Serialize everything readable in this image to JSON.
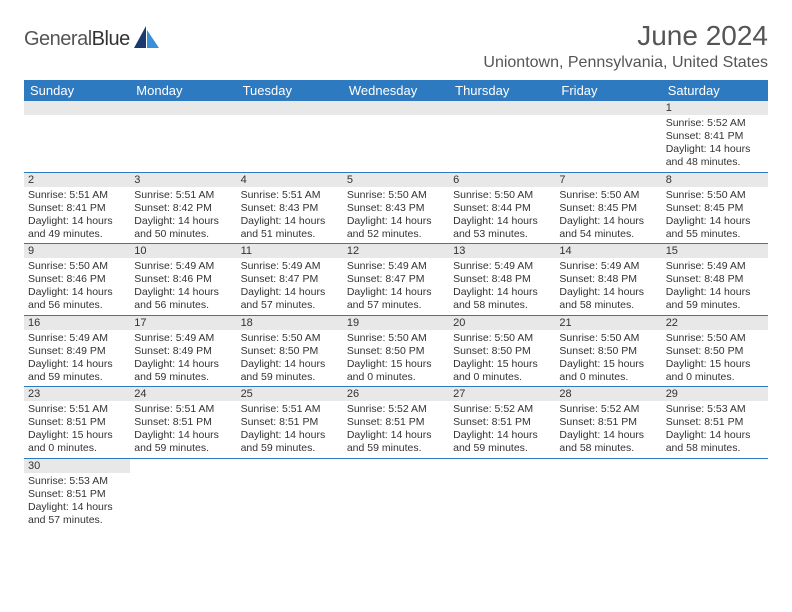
{
  "logo": {
    "text1": "General",
    "text2": "Blue"
  },
  "title": "June 2024",
  "location": "Uniontown, Pennsylvania, United States",
  "colors": {
    "header_bg": "#2d7ac0",
    "header_text": "#ffffff",
    "daynum_bg": "#e8e8e8",
    "text": "#333333",
    "title_text": "#555555",
    "border": "#2d7ac0"
  },
  "weekdays": [
    "Sunday",
    "Monday",
    "Tuesday",
    "Wednesday",
    "Thursday",
    "Friday",
    "Saturday"
  ],
  "weeks": [
    [
      null,
      null,
      null,
      null,
      null,
      null,
      {
        "n": "1",
        "sr": "5:52 AM",
        "ss": "8:41 PM",
        "dl": "14 hours and 48 minutes."
      }
    ],
    [
      {
        "n": "2",
        "sr": "5:51 AM",
        "ss": "8:41 PM",
        "dl": "14 hours and 49 minutes."
      },
      {
        "n": "3",
        "sr": "5:51 AM",
        "ss": "8:42 PM",
        "dl": "14 hours and 50 minutes."
      },
      {
        "n": "4",
        "sr": "5:51 AM",
        "ss": "8:43 PM",
        "dl": "14 hours and 51 minutes."
      },
      {
        "n": "5",
        "sr": "5:50 AM",
        "ss": "8:43 PM",
        "dl": "14 hours and 52 minutes."
      },
      {
        "n": "6",
        "sr": "5:50 AM",
        "ss": "8:44 PM",
        "dl": "14 hours and 53 minutes."
      },
      {
        "n": "7",
        "sr": "5:50 AM",
        "ss": "8:45 PM",
        "dl": "14 hours and 54 minutes."
      },
      {
        "n": "8",
        "sr": "5:50 AM",
        "ss": "8:45 PM",
        "dl": "14 hours and 55 minutes."
      }
    ],
    [
      {
        "n": "9",
        "sr": "5:50 AM",
        "ss": "8:46 PM",
        "dl": "14 hours and 56 minutes."
      },
      {
        "n": "10",
        "sr": "5:49 AM",
        "ss": "8:46 PM",
        "dl": "14 hours and 56 minutes."
      },
      {
        "n": "11",
        "sr": "5:49 AM",
        "ss": "8:47 PM",
        "dl": "14 hours and 57 minutes."
      },
      {
        "n": "12",
        "sr": "5:49 AM",
        "ss": "8:47 PM",
        "dl": "14 hours and 57 minutes."
      },
      {
        "n": "13",
        "sr": "5:49 AM",
        "ss": "8:48 PM",
        "dl": "14 hours and 58 minutes."
      },
      {
        "n": "14",
        "sr": "5:49 AM",
        "ss": "8:48 PM",
        "dl": "14 hours and 58 minutes."
      },
      {
        "n": "15",
        "sr": "5:49 AM",
        "ss": "8:48 PM",
        "dl": "14 hours and 59 minutes."
      }
    ],
    [
      {
        "n": "16",
        "sr": "5:49 AM",
        "ss": "8:49 PM",
        "dl": "14 hours and 59 minutes."
      },
      {
        "n": "17",
        "sr": "5:49 AM",
        "ss": "8:49 PM",
        "dl": "14 hours and 59 minutes."
      },
      {
        "n": "18",
        "sr": "5:50 AM",
        "ss": "8:50 PM",
        "dl": "14 hours and 59 minutes."
      },
      {
        "n": "19",
        "sr": "5:50 AM",
        "ss": "8:50 PM",
        "dl": "15 hours and 0 minutes."
      },
      {
        "n": "20",
        "sr": "5:50 AM",
        "ss": "8:50 PM",
        "dl": "15 hours and 0 minutes."
      },
      {
        "n": "21",
        "sr": "5:50 AM",
        "ss": "8:50 PM",
        "dl": "15 hours and 0 minutes."
      },
      {
        "n": "22",
        "sr": "5:50 AM",
        "ss": "8:50 PM",
        "dl": "15 hours and 0 minutes."
      }
    ],
    [
      {
        "n": "23",
        "sr": "5:51 AM",
        "ss": "8:51 PM",
        "dl": "15 hours and 0 minutes."
      },
      {
        "n": "24",
        "sr": "5:51 AM",
        "ss": "8:51 PM",
        "dl": "14 hours and 59 minutes."
      },
      {
        "n": "25",
        "sr": "5:51 AM",
        "ss": "8:51 PM",
        "dl": "14 hours and 59 minutes."
      },
      {
        "n": "26",
        "sr": "5:52 AM",
        "ss": "8:51 PM",
        "dl": "14 hours and 59 minutes."
      },
      {
        "n": "27",
        "sr": "5:52 AM",
        "ss": "8:51 PM",
        "dl": "14 hours and 59 minutes."
      },
      {
        "n": "28",
        "sr": "5:52 AM",
        "ss": "8:51 PM",
        "dl": "14 hours and 58 minutes."
      },
      {
        "n": "29",
        "sr": "5:53 AM",
        "ss": "8:51 PM",
        "dl": "14 hours and 58 minutes."
      }
    ],
    [
      {
        "n": "30",
        "sr": "5:53 AM",
        "ss": "8:51 PM",
        "dl": "14 hours and 57 minutes."
      },
      null,
      null,
      null,
      null,
      null,
      null
    ]
  ],
  "labels": {
    "sunrise": "Sunrise:",
    "sunset": "Sunset:",
    "daylight": "Daylight:"
  }
}
